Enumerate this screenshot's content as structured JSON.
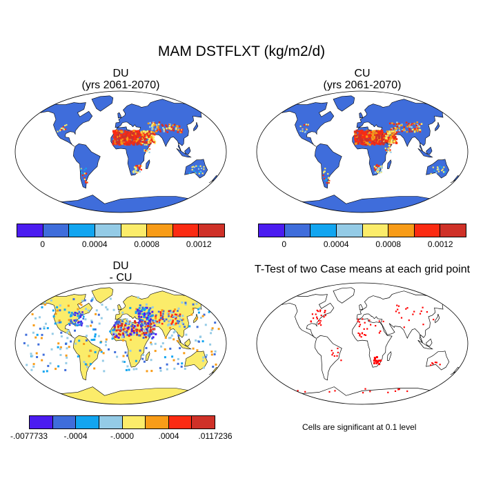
{
  "title": "MAM DSTFLXT (kg/m2/d)",
  "panels": {
    "du": {
      "line1": "DU",
      "line2": "(yrs 2061-2070)"
    },
    "cu": {
      "line1": "CU",
      "line2": "(yrs 2061-2070)"
    },
    "diff": {
      "line1": "DU",
      "line2": "- CU"
    },
    "ttest": {
      "line1": "T-Test of two Case means at each grid point",
      "note": "Cells are significant at 0.1 level"
    }
  },
  "colorbar_main": {
    "colors": [
      "#4b1cf0",
      "#3f6ddb",
      "#12a5f0",
      "#94cbe6",
      "#fbec6a",
      "#f89c18",
      "#fb2b12",
      "#cf3128"
    ],
    "ticks": [
      "0",
      "0.0004",
      "0.0008",
      "0.0012"
    ]
  },
  "colorbar_diff": {
    "colors": [
      "#4b1cf0",
      "#3f6ddb",
      "#12a5f0",
      "#94cbe6",
      "#fbec6a",
      "#f89c18",
      "#fb2b12",
      "#cf3128"
    ],
    "ticks": [
      "-.0077733",
      "-.0004",
      "-.0000",
      ".0004",
      ".0117236"
    ]
  },
  "colors": {
    "ocean": "#ffffff",
    "land_du": "#3f6ddb",
    "land_diff": "#fbec6a",
    "signif": "#ff0000",
    "coast": "#000000"
  }
}
